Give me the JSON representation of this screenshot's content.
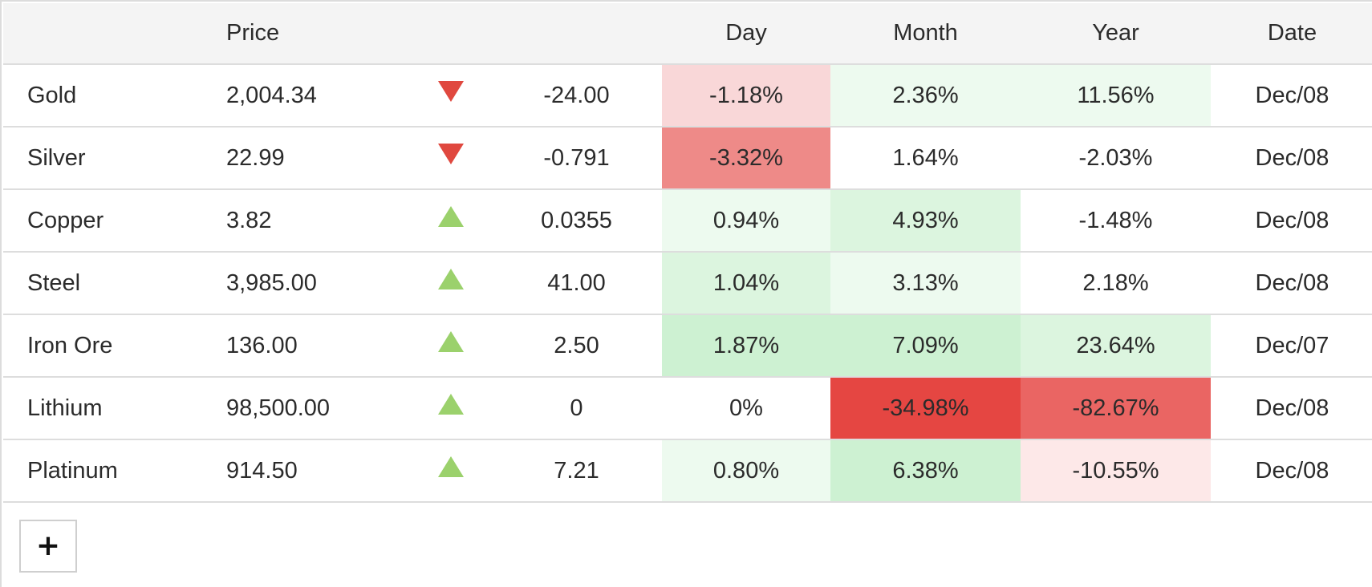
{
  "table": {
    "headers": {
      "name": "",
      "price": "Price",
      "arrow": "",
      "change": "",
      "day": "Day",
      "month": "Month",
      "year": "Year",
      "date": "Date"
    },
    "rows": [
      {
        "name": "Gold",
        "price": "2,004.34",
        "direction": "down",
        "change": "-24.00",
        "day": "-1.18%",
        "month": "2.36%",
        "year": "11.56%",
        "date": "Dec/08",
        "day_bg": "#f9d7d8",
        "month_bg": "#edfaef",
        "year_bg": "#edfaef"
      },
      {
        "name": "Silver",
        "price": "22.99",
        "direction": "down",
        "change": "-0.791",
        "day": "-3.32%",
        "month": "1.64%",
        "year": "-2.03%",
        "date": "Dec/08",
        "day_bg": "#ee8a88",
        "month_bg": "#ffffff",
        "year_bg": "#ffffff"
      },
      {
        "name": "Copper",
        "price": "3.82",
        "direction": "up",
        "change": "0.0355",
        "day": "0.94%",
        "month": "4.93%",
        "year": "-1.48%",
        "date": "Dec/08",
        "day_bg": "#edfaef",
        "month_bg": "#dcf5df",
        "year_bg": "#ffffff"
      },
      {
        "name": "Steel",
        "price": "3,985.00",
        "direction": "up",
        "change": "41.00",
        "day": "1.04%",
        "month": "3.13%",
        "year": "2.18%",
        "date": "Dec/08",
        "day_bg": "#dcf5df",
        "month_bg": "#edfaef",
        "year_bg": "#ffffff"
      },
      {
        "name": "Iron Ore",
        "price": "136.00",
        "direction": "up",
        "change": "2.50",
        "day": "1.87%",
        "month": "7.09%",
        "year": "23.64%",
        "date": "Dec/07",
        "day_bg": "#cdf1d2",
        "month_bg": "#cdf1d2",
        "year_bg": "#dcf5df"
      },
      {
        "name": "Lithium",
        "price": "98,500.00",
        "direction": "up",
        "change": "0",
        "day": "0%",
        "month": "-34.98%",
        "year": "-82.67%",
        "date": "Dec/08",
        "day_bg": "#ffffff",
        "month_bg": "#e54642",
        "year_bg": "#ea6563"
      },
      {
        "name": "Platinum",
        "price": "914.50",
        "direction": "up",
        "change": "7.21",
        "day": "0.80%",
        "month": "6.38%",
        "year": "-10.55%",
        "date": "Dec/08",
        "day_bg": "#edfaef",
        "month_bg": "#cdf1d2",
        "year_bg": "#fde8e8"
      }
    ]
  },
  "add_button": {
    "label": "+"
  },
  "icons": {
    "down": "triangle-down-icon",
    "up": "triangle-up-icon"
  }
}
